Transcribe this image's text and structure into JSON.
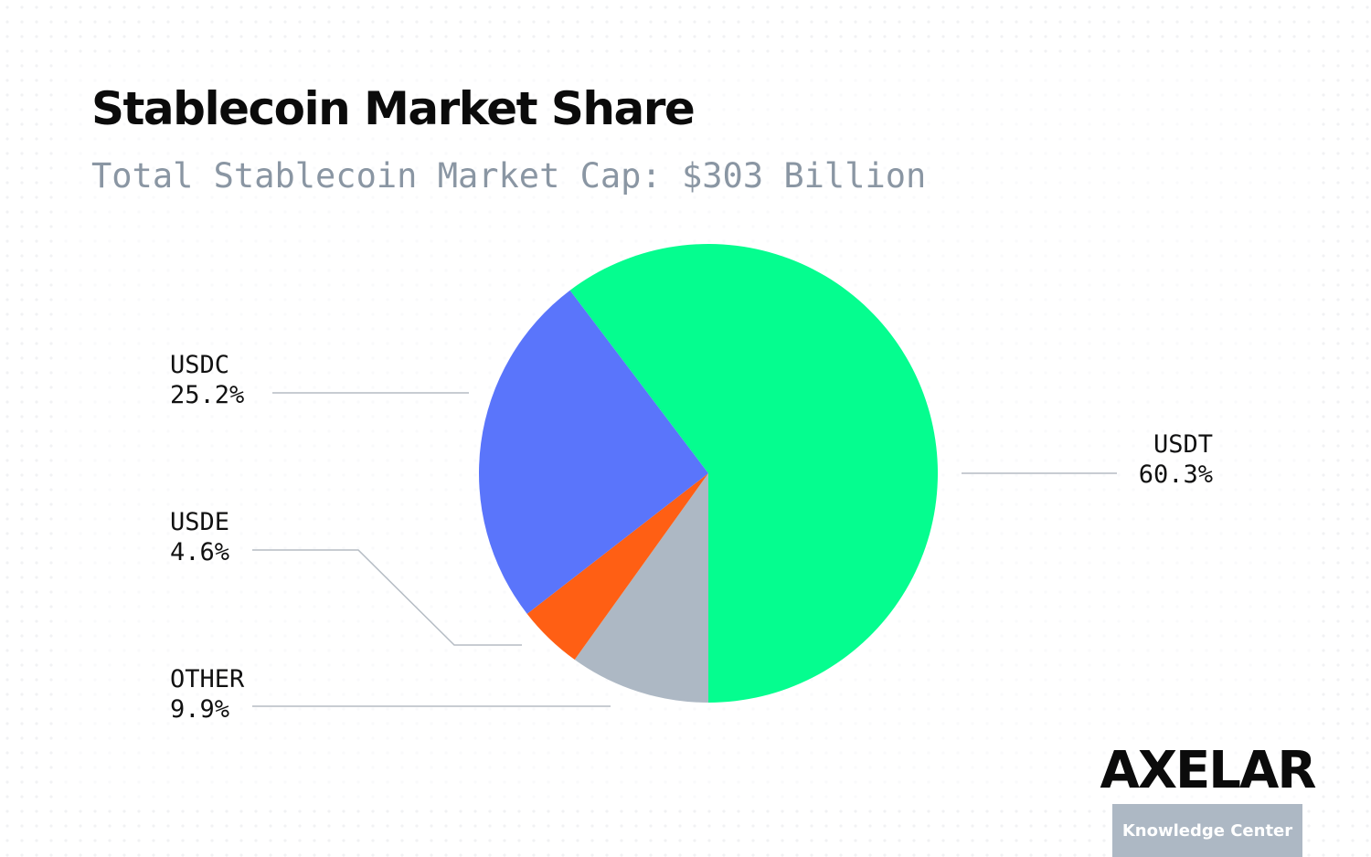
{
  "chart_data": {
    "type": "pie",
    "title": "Stablecoin Market Share",
    "subtitle": "Total Stablecoin Market Cap: $303 Billion",
    "categories": [
      "OTHER",
      "USDE",
      "USDC",
      "USDT"
    ],
    "values": [
      9.9,
      4.6,
      25.2,
      60.3
    ],
    "value_labels": [
      "9.9%",
      "4.6%",
      "25.2%",
      "60.3%"
    ],
    "colors": [
      "#adb8c4",
      "#ff5f14",
      "#5a75fb",
      "#05fd8f"
    ]
  },
  "brand": {
    "logo": "AXELAR",
    "tagline": "Knowledge Center"
  }
}
